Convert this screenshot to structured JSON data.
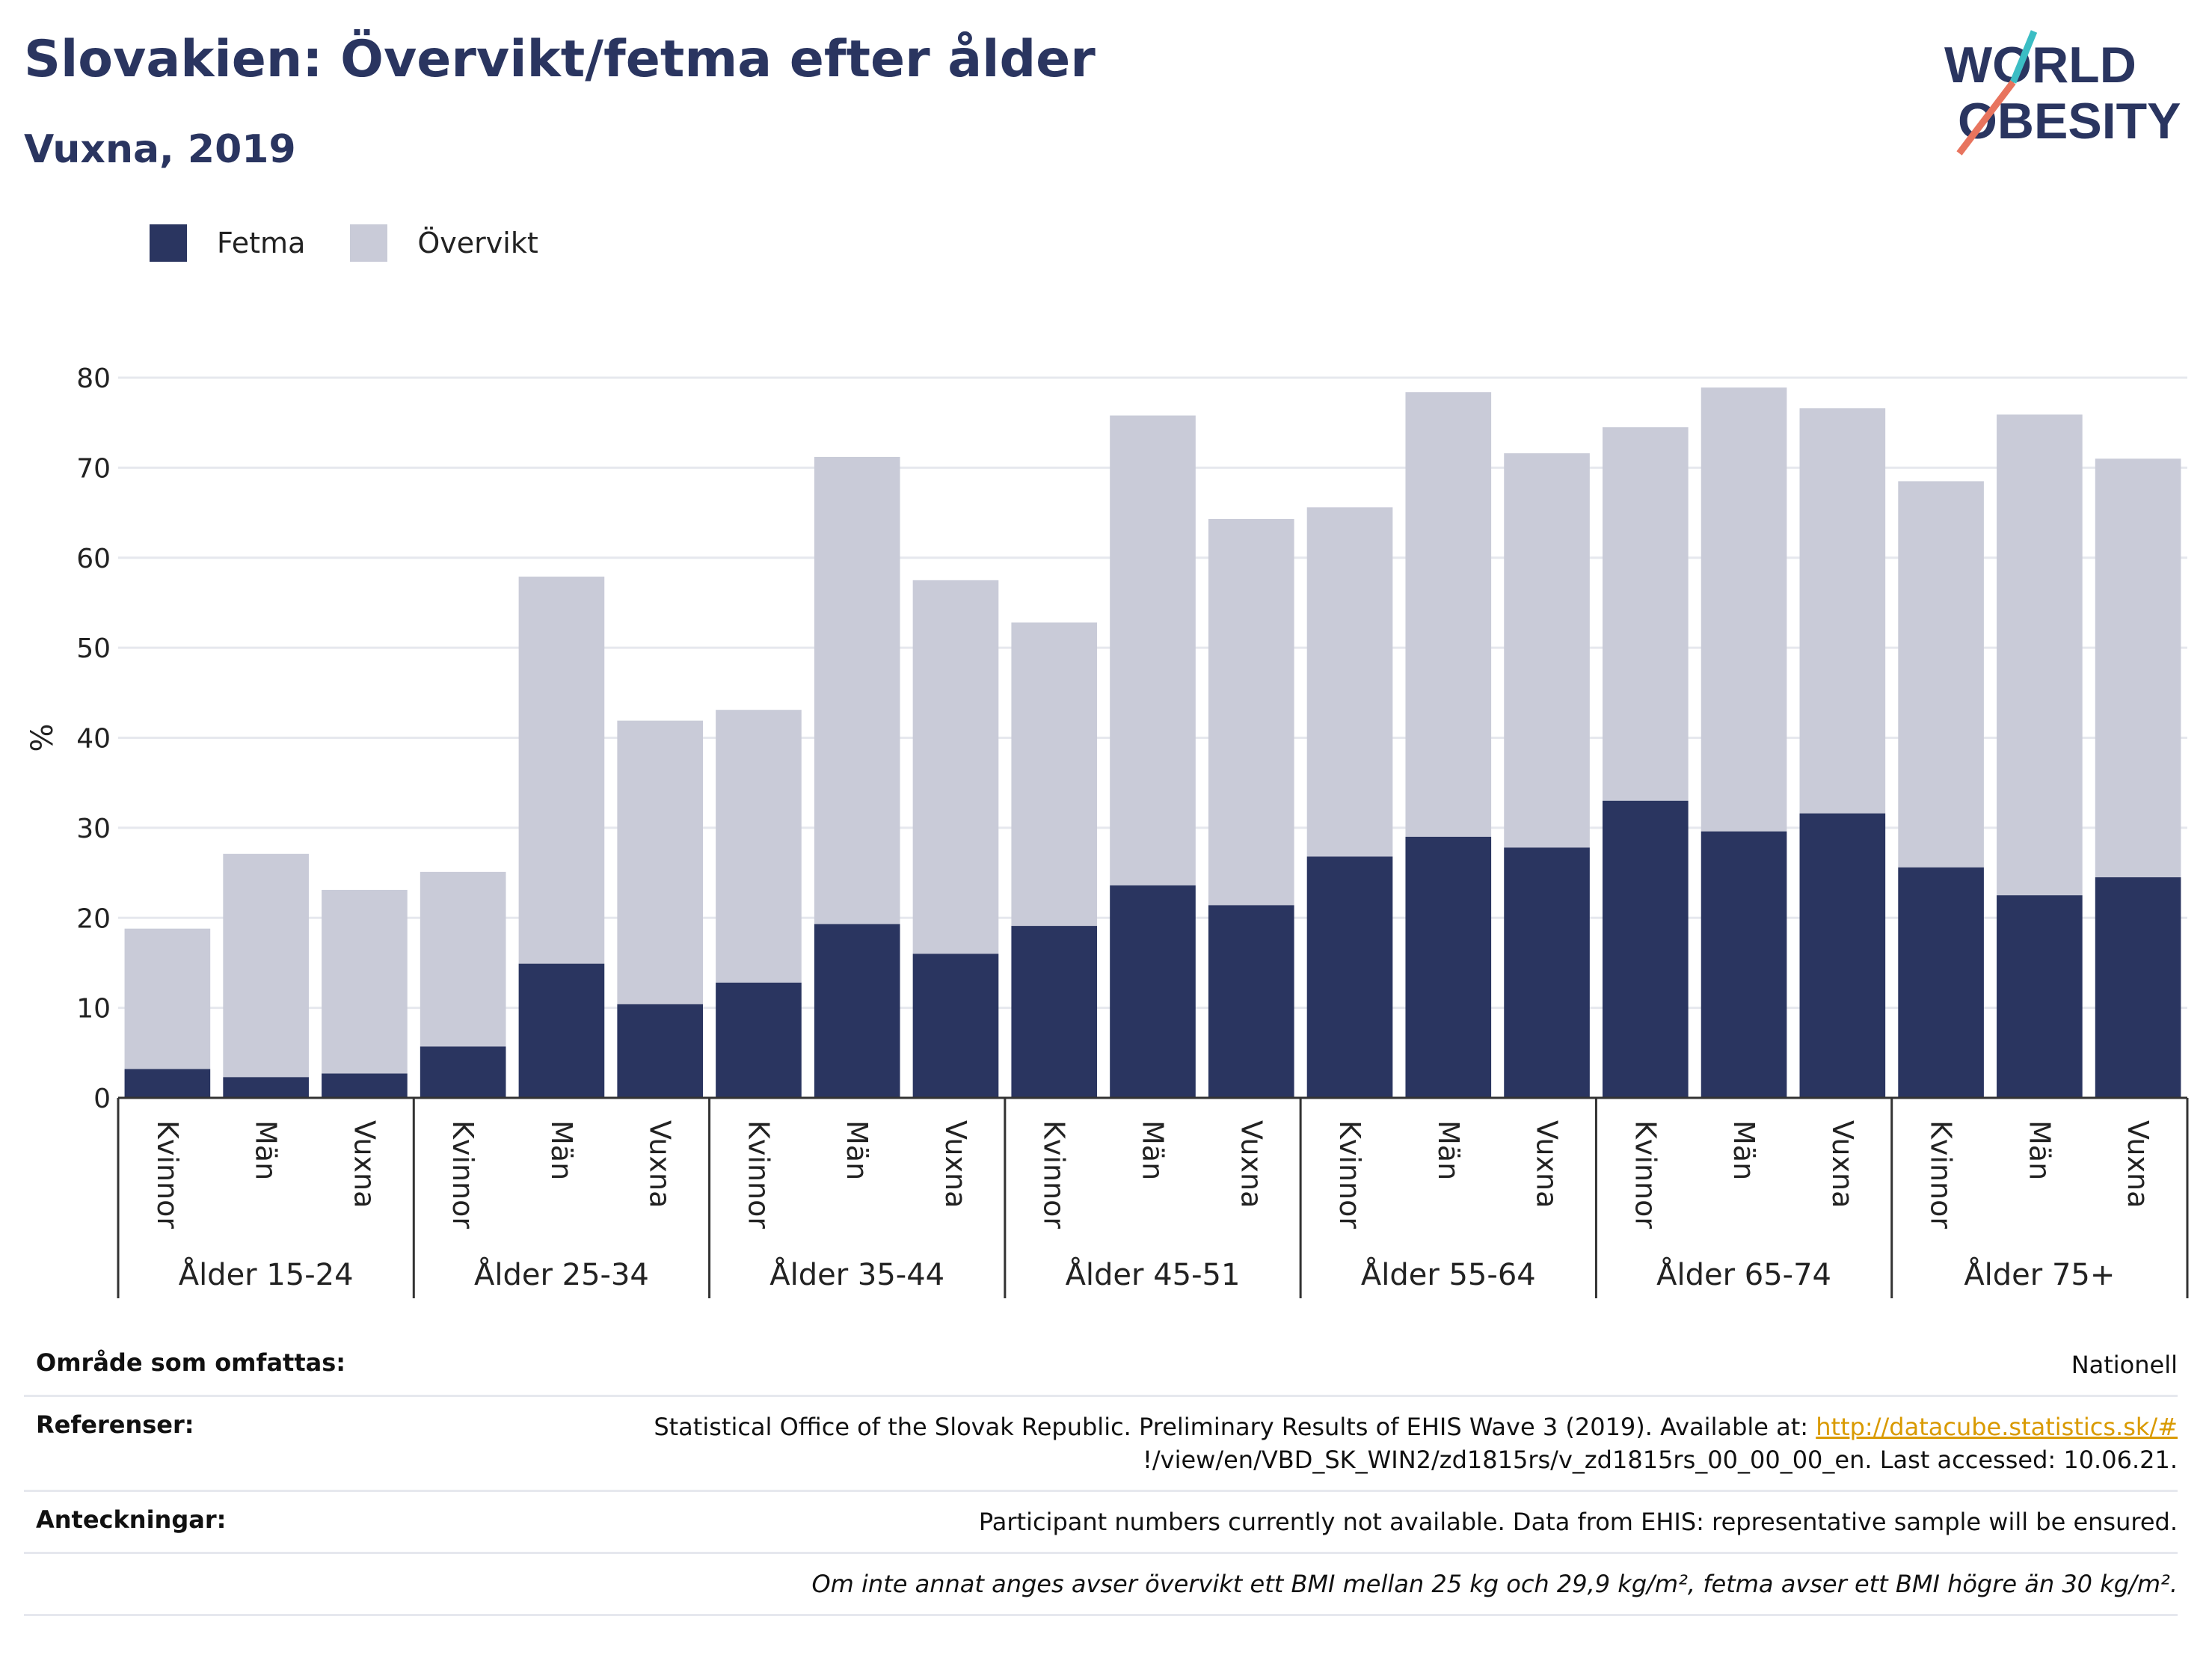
{
  "header": {
    "title": "Slovakien: Övervikt/fetma efter ålder",
    "subtitle": "Vuxna, 2019"
  },
  "logo": {
    "line1": "WORLD",
    "line2": "OBESITY"
  },
  "legend": {
    "fetma": "Fetma",
    "overvikt": "Övervikt"
  },
  "colors": {
    "fetma": "#2a3560",
    "overvikt": "#c9cbd8",
    "accent_teal": "#3bbdc4",
    "accent_coral": "#e8745e"
  },
  "chart_data": {
    "type": "bar",
    "stacked": true,
    "ylabel": "%",
    "ylim": [
      0,
      80
    ],
    "yticks": [
      0,
      10,
      20,
      30,
      40,
      50,
      60,
      70,
      80
    ],
    "grid": true,
    "legend_position": "top-left",
    "groups": [
      "Ålder 15-24",
      "Ålder 25-34",
      "Ålder 35-44",
      "Ålder 45-51",
      "Ålder 55-64",
      "Ålder 65-74",
      "Ålder 75+"
    ],
    "subcategories": [
      "Kvinnor",
      "Män",
      "Vuxna"
    ],
    "series": [
      {
        "name": "Fetma",
        "values": [
          3.2,
          2.3,
          2.7,
          5.7,
          14.9,
          10.4,
          12.8,
          19.3,
          16.0,
          19.1,
          23.6,
          21.4,
          26.8,
          29.0,
          27.8,
          33.0,
          29.6,
          31.6,
          25.6,
          22.5,
          24.5
        ]
      },
      {
        "name": "Övervikt",
        "values": [
          15.6,
          24.8,
          20.4,
          19.4,
          43.0,
          31.5,
          30.3,
          51.9,
          41.5,
          33.7,
          52.2,
          42.9,
          38.8,
          49.4,
          43.8,
          41.5,
          49.3,
          45.0,
          42.9,
          53.4,
          46.5
        ]
      }
    ]
  },
  "info": {
    "area_label": "Område som omfattas:",
    "area_value": "Nationell",
    "ref_label": "Referenser:",
    "ref_text": "Statistical Office of the Slovak Republic. Preliminary Results of EHIS Wave 3 (2019). Available at: ",
    "ref_link": "http://datacube.statistics.sk/#",
    "ref_text2": "!/view/en/VBD_SK_WIN2/zd1815rs/v_zd1815rs_00_00_00_en. Last accessed: 10.06.21.",
    "notes_label": "Anteckningar:",
    "notes_value": "Participant numbers currently not available. Data from EHIS: representative sample will be ensured.",
    "footnote": "Om inte annat anges avser övervikt ett BMI mellan 25 kg och 29,9 kg/m², fetma avser ett BMI högre än 30 kg/m²."
  }
}
